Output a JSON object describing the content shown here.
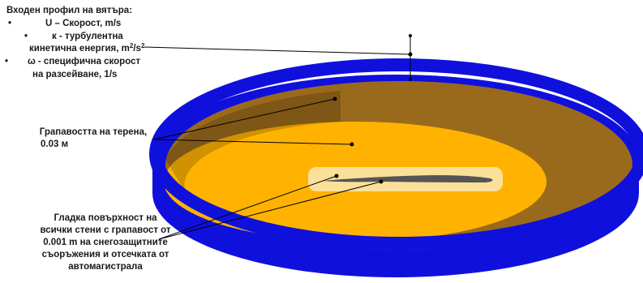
{
  "colors": {
    "wall": "#1010dd",
    "brown_ground": "#9a6a1c",
    "rough_zone": "#f0a418",
    "outer_yellow": "#ffb300",
    "smooth_patch": "#fbe09a",
    "barrier_line": "#555555",
    "leader_line": "#000000"
  },
  "labels": {
    "wind_title": "Входен профил на вятъра:",
    "bullet": "•",
    "u_text": "U – Скорост, m/s",
    "k_text_line1": "к - турбулентна",
    "k_text_line2": "кинетична енергия, m",
    "k_sup1": "2",
    "k_slash": "/s",
    "k_sup2": "2",
    "omega_line1": "ω - специфична скорост",
    "omega_line2": "на разсейване, 1/s",
    "rough_line1": "Грапавостта на терена,",
    "rough_line2": "0.03 м",
    "smooth_line1": "Гладка повърхност на",
    "smooth_line2": "всички стени с грапавост от",
    "smooth_line3": "0.001 m на снегозащитните",
    "smooth_line4": "съоръжения и отсечката от",
    "smooth_line5": "автомагистрала"
  }
}
